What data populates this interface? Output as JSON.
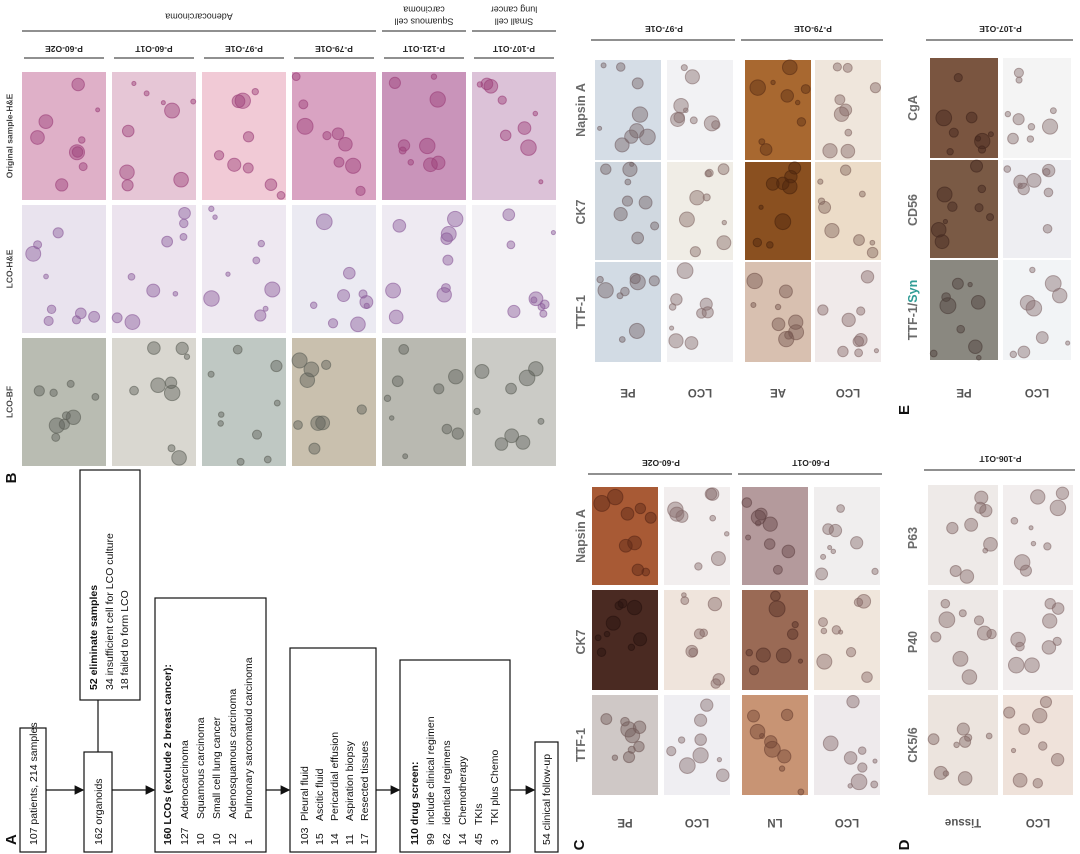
{
  "panel_a": {
    "label": "A",
    "start": "107 patients, 214 samples",
    "organoids": "162 organoids",
    "eliminated": {
      "title": "52 eliminate samples",
      "items": [
        "34 insufficient cell for LCO culture",
        "18 failed to form LCO"
      ]
    },
    "lcos": {
      "title": "160 LCOs (exclude 2 breast cancer):",
      "items": [
        {
          "count": 127,
          "text": "Adenocarcinoma"
        },
        {
          "count": 10,
          "text": "Squamous carcinoma"
        },
        {
          "count": 10,
          "text": "Small cell lung cancer"
        },
        {
          "count": 12,
          "text": "Adenosquamous carcinoma"
        },
        {
          "count": 1,
          "text": "Pulmonary sarcomatoid carcinoma"
        }
      ]
    },
    "sources": {
      "items": [
        {
          "count": 103,
          "text": "Pleural fluid"
        },
        {
          "count": 15,
          "text": "Ascitic fluid"
        },
        {
          "count": 14,
          "text": "Pericardial effusion"
        },
        {
          "count": 11,
          "text": "Aspiration biopsy"
        },
        {
          "count": 17,
          "text": "Resected tissues"
        }
      ]
    },
    "drug_screen": {
      "title": "110 drug screen:",
      "items": [
        {
          "count": 99,
          "text": "include clinical regimen"
        },
        {
          "count": 62,
          "text": "identical regimens"
        },
        {
          "count": 14,
          "text": "Chemotherapy"
        },
        {
          "count": 45,
          "text": "TKIs"
        },
        {
          "count": 3,
          "text": "TKI plus Chemo"
        }
      ]
    },
    "follow_up": "54 clinical follow-up"
  },
  "panel_b": {
    "label": "B",
    "row_labels": [
      "Original sample-H&E",
      "LCO-H&E",
      "LCO-BF"
    ],
    "groups": [
      {
        "name": [
          "Adenocarcinoma"
        ],
        "samples": [
          "P-60-O2E",
          "P-60-O1T",
          "P-97-O1E",
          "P-79-O1E"
        ]
      },
      {
        "name": [
          "Squamous cell",
          "carcinoma"
        ],
        "samples": [
          "P-121-O1T"
        ]
      },
      {
        "name": [
          "Small cell",
          "lung cancer"
        ],
        "samples": [
          "P-107-O1T"
        ]
      }
    ]
  },
  "panel_c": {
    "label": "C",
    "blocks": [
      {
        "stains": [
          [
            "TTF-1"
          ],
          [
            "CK7"
          ],
          [
            "Napsin A"
          ]
        ],
        "samples": [
          {
            "id": "P-60-O2E",
            "rows": [
              "PE",
              "LCO"
            ]
          },
          {
            "id": "P-60-O1T",
            "rows": [
              "LN",
              "LCO"
            ]
          }
        ]
      },
      {
        "stains": [
          [
            "TTF-1"
          ],
          [
            "CK7"
          ],
          [
            "Napsin A"
          ]
        ],
        "samples": [
          {
            "id": "P-97-O1E",
            "rows": [
              "PE",
              "LCO"
            ]
          },
          {
            "id": "P-79-O1E",
            "rows": [
              "AE",
              "LCO"
            ]
          }
        ]
      }
    ]
  },
  "panel_d": {
    "label": "D",
    "blocks": [
      {
        "stains": [
          [
            "CK5/6"
          ],
          [
            "P40"
          ],
          [
            "P63"
          ]
        ],
        "samples": [
          {
            "id": "P-106-O1T",
            "rows": [
              "Tissue",
              "LCO"
            ]
          }
        ]
      }
    ]
  },
  "panel_e": {
    "label": "E",
    "blocks": [
      {
        "stains": [
          [
            "TTF-1/",
            "Syn"
          ],
          [
            "CD56"
          ],
          [
            "CgA"
          ]
        ],
        "samples": [
          {
            "id": "P-107-O1E",
            "rows": [
              "PE",
              "LCO"
            ]
          }
        ]
      }
    ]
  }
}
